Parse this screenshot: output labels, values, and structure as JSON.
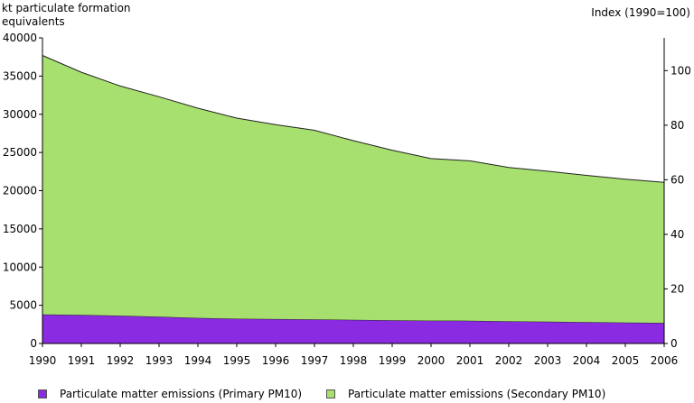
{
  "chart_data": {
    "type": "area",
    "stacked": true,
    "title": "",
    "ylabel_left": "kt particulate formation equivalents",
    "ylabel_right": "Index (1990=100)",
    "x": [
      "1990",
      "1991",
      "1992",
      "1993",
      "1994",
      "1995",
      "1996",
      "1997",
      "1998",
      "1999",
      "2000",
      "2001",
      "2002",
      "2003",
      "2004",
      "2005",
      "2006"
    ],
    "ylim_left": [
      0,
      40000
    ],
    "yticks_left": [
      "0",
      "5000",
      "10000",
      "15000",
      "20000",
      "25000",
      "30000",
      "35000",
      "40000"
    ],
    "ylim_right": [
      0,
      112
    ],
    "yticks_right": [
      "0",
      "20",
      "40",
      "60",
      "80",
      "100"
    ],
    "grid": false,
    "legend_position": "bottom",
    "series": [
      {
        "name": "Particulate matter emissions (Primary PM10)",
        "color": "#8a2be2",
        "values": [
          3800,
          3750,
          3650,
          3500,
          3350,
          3250,
          3200,
          3150,
          3100,
          3050,
          3000,
          2980,
          2900,
          2850,
          2800,
          2750,
          2700
        ]
      },
      {
        "name": "Particulate matter emissions (Secondary PM10)",
        "color": "#a8e070",
        "values": [
          33900,
          31750,
          30050,
          28800,
          27450,
          26250,
          25450,
          24750,
          23450,
          22250,
          21200,
          20920,
          20150,
          19700,
          19200,
          18750,
          18400
        ]
      }
    ]
  }
}
